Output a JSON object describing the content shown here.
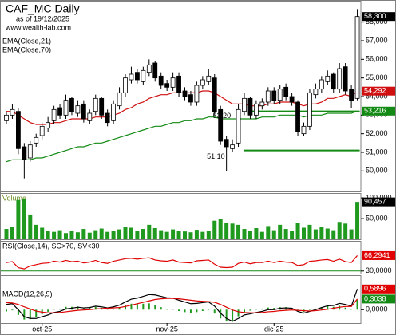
{
  "chart_data": {
    "type": "candlestick",
    "title": "CAF_MC Daily",
    "subtitle": "as of 19/12/2025",
    "source": "www.wealth-lab.com",
    "categories": [
      null,
      null,
      null,
      null,
      null,
      null,
      "oct-25",
      null,
      null,
      null,
      null,
      null,
      null,
      null,
      null,
      null,
      null,
      null,
      null,
      null,
      null,
      null,
      null,
      null,
      null,
      null,
      null,
      "nov-25",
      null,
      null,
      null,
      null,
      null,
      null,
      null,
      null,
      null,
      null,
      null,
      null,
      null,
      null,
      null,
      null,
      null,
      "dic-25",
      null,
      null,
      null,
      null,
      null,
      null,
      null,
      null,
      null,
      null,
      null,
      null,
      null,
      null
    ],
    "price": {
      "open": [
        52.7,
        53.0,
        53.2,
        51.3,
        50.7,
        51.5,
        51.9,
        52.3,
        52.7,
        53.4,
        53.0,
        53.9,
        53.1,
        53.6,
        52.7,
        53.2,
        53.9,
        53.1,
        52.7,
        53.5,
        54.2,
        54.9,
        55.3,
        54.8,
        55.3,
        55.8,
        55.1,
        54.7,
        54.5,
        55.1,
        54.3,
        54.1,
        53.7,
        54.6,
        54.8,
        55.0,
        53.3,
        51.7,
        51.2,
        51.5,
        53.2,
        53.9,
        53.0,
        53.5,
        53.7,
        54.3,
        53.8,
        54.5,
        54.0,
        53.7,
        52.0,
        52.4,
        54.1,
        54.4,
        54.8,
        55.2,
        54.4,
        55.6,
        54.4,
        53.9
      ],
      "high": [
        53.2,
        53.6,
        53.4,
        51.5,
        51.6,
        52.0,
        52.6,
        52.9,
        53.5,
        53.6,
        54.1,
        54.0,
        53.8,
        53.8,
        53.3,
        54.1,
        54.0,
        53.3,
        53.8,
        54.5,
        55.2,
        55.6,
        55.5,
        55.6,
        56.0,
        55.9,
        55.3,
        54.9,
        55.3,
        55.3,
        54.5,
        54.3,
        54.8,
        55.1,
        55.5,
        55.2,
        53.5,
        51.9,
        51.7,
        53.6,
        54.2,
        54.0,
        53.8,
        53.9,
        54.5,
        54.5,
        54.6,
        54.7,
        54.2,
        53.8,
        52.6,
        54.4,
        54.7,
        55.1,
        55.4,
        55.3,
        55.8,
        55.8,
        54.6,
        58.7
      ],
      "low": [
        52.5,
        52.8,
        50.9,
        49.6,
        50.5,
        51.3,
        51.7,
        52.1,
        52.5,
        52.8,
        52.8,
        53.0,
        52.9,
        52.6,
        52.5,
        53.0,
        52.8,
        52.4,
        52.5,
        53.3,
        54.0,
        54.7,
        54.7,
        54.6,
        55.1,
        54.8,
        54.4,
        54.3,
        54.3,
        54.0,
        53.8,
        53.5,
        53.5,
        54.4,
        54.6,
        53.0,
        51.4,
        50.0,
        51.0,
        51.3,
        53.0,
        52.8,
        52.8,
        53.3,
        53.5,
        53.6,
        53.6,
        53.8,
        53.5,
        51.9,
        51.9,
        52.2,
        53.9,
        54.2,
        54.6,
        54.2,
        54.2,
        54.1,
        53.4,
        53.8
      ],
      "close": [
        53.0,
        53.3,
        51.2,
        50.6,
        51.4,
        51.8,
        52.4,
        52.6,
        53.3,
        53.0,
        53.8,
        53.2,
        53.5,
        52.8,
        53.1,
        53.9,
        53.0,
        52.6,
        53.6,
        54.2,
        55.0,
        55.2,
        54.9,
        55.4,
        55.7,
        55.0,
        54.6,
        54.5,
        55.0,
        54.2,
        54.0,
        53.7,
        54.6,
        54.9,
        55.1,
        53.2,
        51.6,
        51.3,
        51.4,
        53.3,
        53.9,
        53.0,
        53.6,
        53.7,
        54.3,
        53.8,
        54.4,
        54.0,
        53.7,
        52.1,
        52.4,
        54.2,
        54.4,
        54.9,
        55.1,
        54.4,
        55.5,
        54.3,
        53.8,
        58.3
      ],
      "last_label": "58,300",
      "up_color": "#ffffff",
      "down_color": "#000000",
      "ylim": [
        48.9,
        59.1
      ],
      "yticks": [
        {
          "value": 50,
          "label": "50,000"
        },
        {
          "value": 51,
          "label": "51,000"
        },
        {
          "value": 52,
          "label": "52,000"
        },
        {
          "value": 53,
          "label": "53,000"
        },
        {
          "value": 54,
          "label": "54,000"
        },
        {
          "value": 55,
          "label": "55,000"
        },
        {
          "value": 56,
          "label": "56,000"
        },
        {
          "value": 57,
          "label": "57,000"
        },
        {
          "value": 58,
          "label": "58,000"
        }
      ]
    },
    "overlays": [
      {
        "name": "EMA(Close,21)",
        "color": "#d01010",
        "last_label": "54,292",
        "values": [
          53.2,
          53.2,
          53.0,
          52.8,
          52.6,
          52.5,
          52.5,
          52.5,
          52.6,
          52.6,
          52.7,
          52.8,
          52.8,
          52.8,
          52.8,
          52.9,
          52.9,
          52.9,
          53.0,
          53.1,
          53.3,
          53.4,
          53.6,
          53.7,
          53.9,
          54.0,
          54.1,
          54.1,
          54.2,
          54.2,
          54.2,
          54.2,
          54.2,
          54.3,
          54.3,
          54.2,
          54.0,
          53.8,
          53.6,
          53.6,
          53.6,
          53.5,
          53.5,
          53.5,
          53.6,
          53.6,
          53.7,
          53.7,
          53.7,
          53.6,
          53.5,
          53.6,
          53.6,
          53.7,
          53.9,
          53.9,
          54.0,
          54.1,
          54.0,
          54.292
        ]
      },
      {
        "name": "EMA(Close,70)",
        "color": "#138a13",
        "last_label": "53,216",
        "values": [
          50.5,
          50.6,
          50.6,
          50.6,
          50.6,
          50.7,
          50.7,
          50.8,
          50.9,
          51.0,
          51.1,
          51.2,
          51.3,
          51.3,
          51.4,
          51.5,
          51.5,
          51.6,
          51.7,
          51.8,
          51.9,
          52.0,
          52.1,
          52.2,
          52.3,
          52.4,
          52.4,
          52.5,
          52.6,
          52.6,
          52.7,
          52.7,
          52.8,
          52.8,
          52.9,
          52.9,
          52.8,
          52.8,
          52.8,
          52.8,
          52.8,
          52.8,
          52.8,
          52.9,
          52.9,
          52.9,
          53.0,
          53.0,
          53.0,
          53.0,
          52.9,
          53.0,
          53.0,
          53.0,
          53.1,
          53.1,
          53.1,
          53.1,
          53.1,
          53.216
        ]
      }
    ],
    "levels": [
      {
        "label": "53,20",
        "value": 53.2,
        "index": 38,
        "color": "#138a13"
      },
      {
        "label": "51,10",
        "value": 51.1,
        "index": 37,
        "color": "#138a13"
      }
    ],
    "volume": {
      "name": "Volume",
      "color": "#1f9a1f",
      "last_label": "90,457",
      "values": [
        25000,
        30000,
        95000,
        98000,
        60000,
        35000,
        28000,
        20000,
        18000,
        22000,
        15000,
        20000,
        17000,
        25000,
        16000,
        22000,
        26000,
        18000,
        21000,
        24000,
        30000,
        28000,
        20000,
        25000,
        35000,
        27000,
        22000,
        18000,
        24000,
        20000,
        19000,
        17000,
        23000,
        18000,
        20000,
        45000,
        50000,
        40000,
        38000,
        35000,
        25000,
        20000,
        27000,
        18000,
        32000,
        22000,
        35000,
        25000,
        20000,
        40000,
        28000,
        35000,
        24000,
        30000,
        26000,
        22000,
        42000,
        38000,
        24000,
        90457
      ],
      "ylim": [
        0,
        110000
      ],
      "yticks": [
        {
          "value": 50000,
          "label": "50,000"
        },
        {
          "value": 100000,
          "label": "100,000"
        }
      ]
    },
    "rsi": {
      "name": "RSI(Close,14), SC>70, SV<30",
      "color": "#e00000",
      "last_label": "66,2941",
      "values": [
        50,
        52,
        38,
        35,
        42,
        45,
        48,
        49,
        53,
        51,
        55,
        52,
        53,
        49,
        51,
        55,
        50,
        48,
        53,
        56,
        59,
        60,
        58,
        60,
        61,
        56,
        54,
        53,
        56,
        51,
        50,
        49,
        54,
        55,
        56,
        46,
        39,
        38,
        39,
        48,
        51,
        47,
        50,
        50,
        53,
        50,
        53,
        51,
        50,
        43,
        45,
        53,
        54,
        56,
        57,
        53,
        58,
        52,
        50,
        66.2941
      ],
      "ylim": [
        24,
        99
      ],
      "yticks": [
        {
          "value": 30,
          "label": "30,0000"
        }
      ],
      "levels": [
        70,
        30
      ],
      "level_color": "#138a13"
    },
    "macd": {
      "name": "MACD(12,26,9)",
      "series": [
        {
          "color": "#000000",
          "tag_color": "#e00000",
          "last_label": "0,5896",
          "values": [
            0.15,
            0.17,
            0.0,
            -0.2,
            -0.25,
            -0.25,
            -0.2,
            -0.15,
            -0.08,
            -0.05,
            0.02,
            0.04,
            0.07,
            0.05,
            0.06,
            0.1,
            0.08,
            0.05,
            0.08,
            0.13,
            0.22,
            0.3,
            0.33,
            0.38,
            0.43,
            0.42,
            0.38,
            0.34,
            0.33,
            0.27,
            0.22,
            0.17,
            0.18,
            0.2,
            0.22,
            0.1,
            -0.1,
            -0.25,
            -0.33,
            -0.25,
            -0.15,
            -0.12,
            -0.08,
            -0.05,
            0.0,
            0.0,
            0.04,
            0.05,
            0.04,
            -0.05,
            -0.1,
            -0.05,
            0.0,
            0.06,
            0.11,
            0.12,
            0.18,
            0.15,
            0.1,
            0.5896
          ]
        },
        {
          "color": "#e00000",
          "tag_color": "#138a13",
          "last_label": "0,3038",
          "values": [
            0.2,
            0.19,
            0.15,
            0.08,
            0.02,
            -0.04,
            -0.07,
            -0.09,
            -0.09,
            -0.08,
            -0.06,
            -0.04,
            -0.02,
            -0.01,
            0.0,
            0.02,
            0.03,
            0.04,
            0.05,
            0.06,
            0.09,
            0.13,
            0.17,
            0.21,
            0.25,
            0.29,
            0.31,
            0.32,
            0.32,
            0.31,
            0.29,
            0.27,
            0.25,
            0.24,
            0.23,
            0.21,
            0.15,
            0.07,
            -0.01,
            -0.06,
            -0.08,
            -0.09,
            -0.09,
            -0.08,
            -0.06,
            -0.05,
            -0.03,
            -0.02,
            -0.01,
            -0.02,
            -0.03,
            -0.04,
            -0.03,
            -0.01,
            0.01,
            0.04,
            0.07,
            0.09,
            0.09,
            0.3038
          ]
        }
      ],
      "histogram": {
        "color": "#1f9a1f",
        "values": [
          -0.05,
          -0.02,
          -0.15,
          -0.28,
          -0.27,
          -0.21,
          -0.13,
          -0.06,
          0.01,
          0.03,
          0.08,
          0.08,
          0.09,
          0.06,
          0.06,
          0.08,
          0.05,
          0.01,
          0.03,
          0.07,
          0.13,
          0.17,
          0.16,
          0.17,
          0.18,
          0.13,
          0.07,
          0.02,
          0.01,
          -0.04,
          -0.07,
          -0.1,
          -0.07,
          -0.04,
          -0.01,
          -0.11,
          -0.25,
          -0.32,
          -0.32,
          -0.19,
          -0.07,
          -0.03,
          0.01,
          0.03,
          0.06,
          0.05,
          0.07,
          0.07,
          0.05,
          -0.03,
          -0.07,
          -0.01,
          0.03,
          0.07,
          0.1,
          0.08,
          0.11,
          0.06,
          0.01,
          0.2858
        ]
      },
      "ylim": [
        -0.38,
        0.96
      ],
      "yticks": [
        {
          "value": 0,
          "label": "0,0000"
        }
      ]
    }
  }
}
